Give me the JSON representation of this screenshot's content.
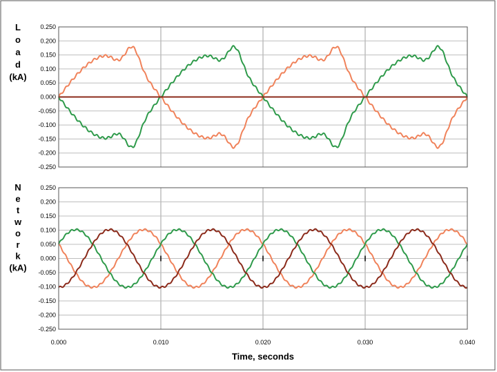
{
  "chart_data": [
    {
      "type": "line",
      "id": "load",
      "ylabel_lines": [
        "L",
        "o",
        "a",
        "d",
        "(kA)"
      ],
      "ylim": [
        -0.25,
        0.25
      ],
      "ytick_labels": [
        "0.250",
        "0.200",
        "0.150",
        "0.100",
        "0.050",
        "0.000",
        "-0.050",
        "-0.100",
        "-0.150",
        "-0.200",
        "-0.250"
      ],
      "xlim": [
        0,
        0.04
      ],
      "grid": true,
      "series": [
        {
          "color": "#F0825A",
          "shape": "load_a"
        },
        {
          "color": "#2E9A4A",
          "shape": "load_b"
        },
        {
          "color": "#8B2A1A",
          "shape": "flat_zero"
        }
      ]
    },
    {
      "type": "line",
      "id": "network",
      "ylabel_lines": [
        "N",
        "e",
        "t",
        "w",
        "o",
        "r",
        "k",
        "(kA)"
      ],
      "ylim": [
        -0.25,
        0.25
      ],
      "ytick_labels": [
        "0.250",
        "0.200",
        "0.150",
        "0.100",
        "0.050",
        "0.000",
        "-0.050",
        "-0.100",
        "-0.150",
        "-0.200",
        "-0.250"
      ],
      "xlim": [
        0,
        0.04
      ],
      "xtick_labels": [
        "0.000",
        "0.010",
        "0.020",
        "0.030",
        "0.040"
      ],
      "xlabel": "Time, seconds",
      "grid": true,
      "series": [
        {
          "color": "#F0825A",
          "amplitude": 0.102,
          "phase_deg": 150
        },
        {
          "color": "#2E9A4A",
          "amplitude": 0.102,
          "phase_deg": 30
        },
        {
          "color": "#8B2A1A",
          "amplitude": 0.102,
          "phase_deg": -90
        }
      ]
    }
  ],
  "colors": {
    "frame": "#555555",
    "grid": "#BDBDBD",
    "background": "#ffffff"
  }
}
